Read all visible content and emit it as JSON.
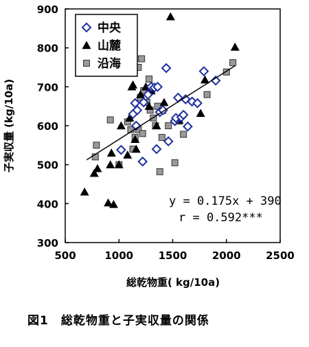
{
  "chart_data": {
    "type": "scatter",
    "xlabel": "総乾物重( kg/10a)",
    "ylabel": "子実収量 (kg/10a)",
    "xlim": [
      500,
      2500
    ],
    "ylim": [
      300,
      900
    ],
    "xticks": [
      "500",
      "1000",
      "1500",
      "2000",
      "2500"
    ],
    "yticks": [
      "300",
      "400",
      "500",
      "600",
      "700",
      "800",
      "900"
    ],
    "legend_position": "top-left",
    "series": [
      {
        "name": "中央",
        "marker": "open-diamond",
        "color": "#1f2f9f",
        "points": [
          [
            1020,
            538
          ],
          [
            1130,
            630
          ],
          [
            1150,
            658
          ],
          [
            1160,
            600
          ],
          [
            1170,
            640
          ],
          [
            1220,
            508
          ],
          [
            1230,
            660
          ],
          [
            1270,
            680
          ],
          [
            1300,
            700
          ],
          [
            1330,
            698
          ],
          [
            1350,
            540
          ],
          [
            1360,
            700
          ],
          [
            1380,
            635
          ],
          [
            1410,
            640
          ],
          [
            1440,
            748
          ],
          [
            1460,
            560
          ],
          [
            1520,
            612
          ],
          [
            1530,
            620
          ],
          [
            1550,
            672
          ],
          [
            1580,
            622
          ],
          [
            1600,
            628
          ],
          [
            1620,
            668
          ],
          [
            1640,
            598
          ],
          [
            1680,
            662
          ],
          [
            1730,
            658
          ],
          [
            1790,
            740
          ],
          [
            1900,
            716
          ]
        ]
      },
      {
        "name": "山麓",
        "marker": "filled-triangle",
        "color": "#000000",
        "points": [
          [
            680,
            430
          ],
          [
            770,
            478
          ],
          [
            800,
            490
          ],
          [
            900,
            402
          ],
          [
            920,
            500
          ],
          [
            930,
            530
          ],
          [
            950,
            398
          ],
          [
            1000,
            500
          ],
          [
            1020,
            600
          ],
          [
            1080,
            525
          ],
          [
            1100,
            620
          ],
          [
            1120,
            700
          ],
          [
            1130,
            705
          ],
          [
            1150,
            565
          ],
          [
            1160,
            540
          ],
          [
            1200,
            680
          ],
          [
            1250,
            700
          ],
          [
            1280,
            650
          ],
          [
            1300,
            690
          ],
          [
            1310,
            700
          ],
          [
            1350,
            600
          ],
          [
            1400,
            640
          ],
          [
            1420,
            660
          ],
          [
            1480,
            880
          ],
          [
            1560,
            615
          ],
          [
            1760,
            632
          ],
          [
            1800,
            718
          ],
          [
            2080,
            802
          ]
        ]
      },
      {
        "name": "沿海",
        "marker": "filled-square",
        "color": "#999999",
        "points": [
          [
            780,
            520
          ],
          [
            790,
            550
          ],
          [
            920,
            615
          ],
          [
            1000,
            500
          ],
          [
            1080,
            610
          ],
          [
            1110,
            590
          ],
          [
            1130,
            540
          ],
          [
            1150,
            570
          ],
          [
            1180,
            590
          ],
          [
            1200,
            672
          ],
          [
            1220,
            580
          ],
          [
            1230,
            690
          ],
          [
            1260,
            660
          ],
          [
            1280,
            720
          ],
          [
            1290,
            640
          ],
          [
            1320,
            620
          ],
          [
            1340,
            600
          ],
          [
            1360,
            650
          ],
          [
            1380,
            482
          ],
          [
            1400,
            570
          ],
          [
            1460,
            600
          ],
          [
            1520,
            505
          ],
          [
            1560,
            612
          ],
          [
            1600,
            578
          ],
          [
            1820,
            680
          ],
          [
            2000,
            738
          ],
          [
            2060,
            762
          ],
          [
            1180,
            750
          ],
          [
            1210,
            772
          ]
        ]
      }
    ],
    "trendline": {
      "slope": 0.175,
      "intercept": 390,
      "x_range": [
        700,
        2080
      ]
    },
    "annotations": [
      "y = 0.175x + 390",
      "r = 0.592***"
    ]
  },
  "caption": "図1　総乾物重と子実収量の関係"
}
